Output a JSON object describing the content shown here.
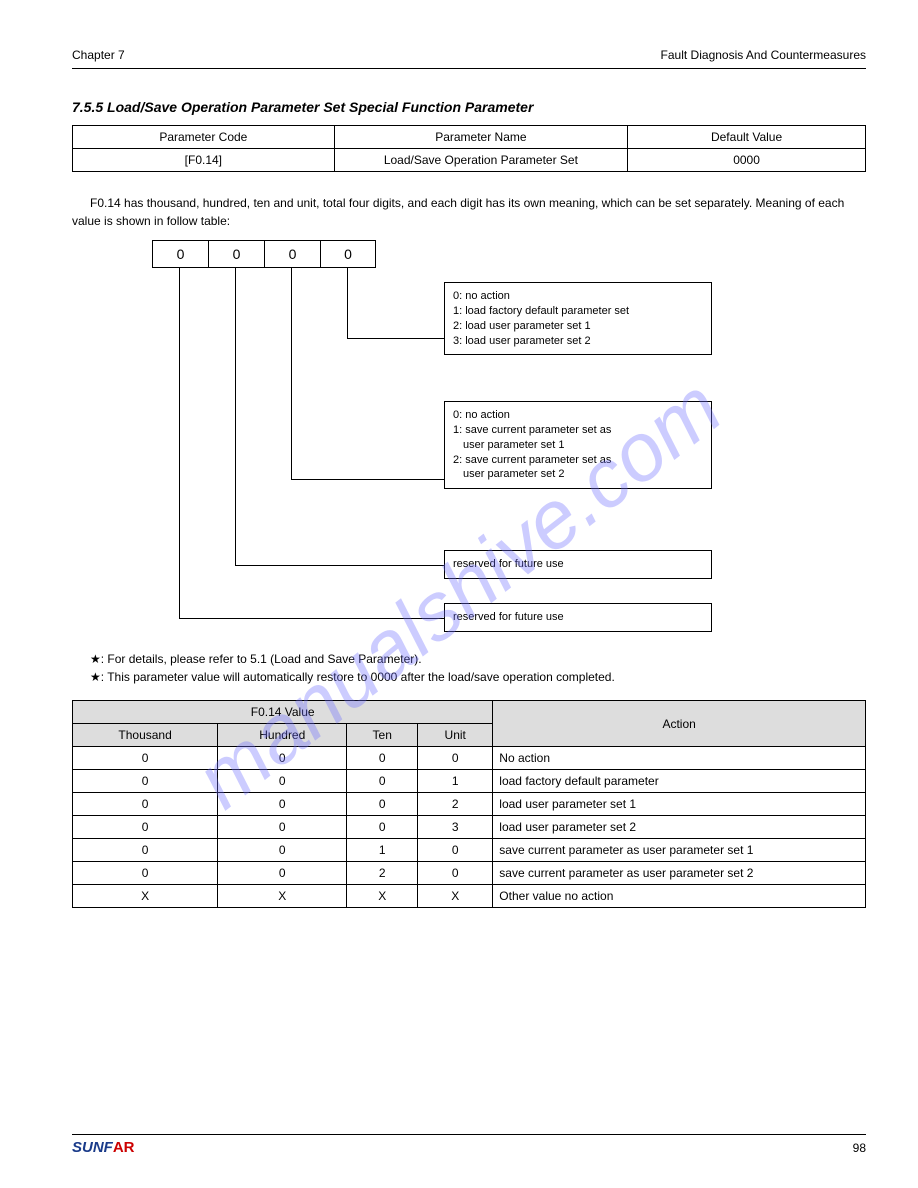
{
  "header": {
    "left": "Chapter 7",
    "right": "Fault Diagnosis And Countermeasures"
  },
  "section": "7.5.5 Load/Save Operation Parameter Set Special Function Parameter",
  "t1": {
    "c1h": "Parameter Code",
    "c1v": "[F0.14]",
    "c2h": "Parameter Name",
    "c2v": "Load/Save Operation Parameter Set",
    "c3h": "Default Value",
    "c3v": "0000"
  },
  "intro": "F0.14 has thousand, hundred, ten and unit, total four digits, and each digit has its own meaning, which can be set separately. Meaning of each value is shown in follow table:",
  "diag": {
    "d1": "0",
    "d2": "0",
    "d3": "0",
    "d4": "0",
    "b1l1": "0: no action",
    "b1l2": "1: load factory default parameter set",
    "b1l3": "2: load user parameter set 1",
    "b1l4": "3: load user parameter set 2",
    "b2l1": "0: no action",
    "b2l2": "1: save current parameter set as",
    "b2l2b": "user parameter set 1",
    "b2l3": "2: save current parameter set as",
    "b2l3b": "user parameter set 2",
    "c1": "reserved for future use",
    "c2": "reserved for future use"
  },
  "note1": "★: For details, please refer to 5.1 (Load and Save Parameter).",
  "note2": "★: This parameter value will automatically restore to 0000 after the load/save operation completed.",
  "t2": {
    "h1": "F0.14 Value",
    "h2": "Action",
    "s1": "Thousand",
    "s2": "Hundred",
    "s3": "Ten",
    "s4": "Unit",
    "rows": [
      [
        "0",
        "0",
        "0",
        "0",
        "No action"
      ],
      [
        "0",
        "0",
        "0",
        "1",
        "load factory default parameter"
      ],
      [
        "0",
        "0",
        "0",
        "2",
        "load user parameter set 1"
      ],
      [
        "0",
        "0",
        "0",
        "3",
        "load user parameter set 2"
      ],
      [
        "0",
        "0",
        "1",
        "0",
        "save current parameter as user parameter set 1"
      ],
      [
        "0",
        "0",
        "2",
        "0",
        "save current parameter as user parameter set 2"
      ],
      [
        "X",
        "X",
        "X",
        "X",
        "Other value no action"
      ]
    ]
  },
  "footer": {
    "brand1": "SUNF",
    "brand2": "AR",
    "page": "98"
  }
}
